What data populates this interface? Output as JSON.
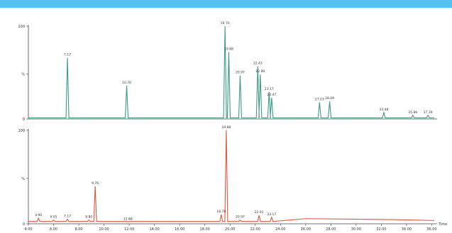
{
  "colors": {
    "banner": "#55c1ee",
    "trace_top": "#3f9a86",
    "trace_bottom": "#e0553d",
    "axis": "#444444"
  },
  "chart_data": [
    {
      "type": "line",
      "name": "",
      "color": "#3f9a86",
      "y_ticks": [
        "100",
        "%",
        "0"
      ],
      "ylim": [
        0,
        100
      ],
      "xlim": [
        4.0,
        36.2
      ],
      "baseline": 1.2,
      "peaks": [
        {
          "x": 7.1,
          "y": 66,
          "label": "7.17"
        },
        {
          "x": 11.8,
          "y": 36,
          "label": "10.76"
        },
        {
          "x": 19.6,
          "y": 100,
          "label": "19.70"
        },
        {
          "x": 19.9,
          "y": 72,
          "label": "19.88"
        },
        {
          "x": 20.8,
          "y": 47,
          "label": "20.97"
        },
        {
          "x": 22.2,
          "y": 57,
          "label": "22.43"
        },
        {
          "x": 22.4,
          "y": 48,
          "label": "22.89"
        },
        {
          "x": 23.1,
          "y": 29,
          "label": "23.17"
        },
        {
          "x": 23.3,
          "y": 23,
          "label": "23.47"
        },
        {
          "x": 27.1,
          "y": 18,
          "label": "27.03"
        },
        {
          "x": 27.9,
          "y": 19,
          "label": "28.09"
        },
        {
          "x": 32.2,
          "y": 7,
          "label": "33.48"
        },
        {
          "x": 34.5,
          "y": 4,
          "label": "35.86"
        },
        {
          "x": 35.7,
          "y": 4,
          "label": "37.39"
        }
      ]
    },
    {
      "type": "line",
      "name": "",
      "color": "#e0553d",
      "y_ticks": [
        "100",
        "%",
        "0"
      ],
      "ylim": [
        0,
        100
      ],
      "xlim": [
        4.0,
        36.2
      ],
      "x_ticks": [
        "4.00",
        "6.00",
        "8.00",
        "10.00",
        "12.00",
        "14.00",
        "16.00",
        "18.00",
        "20.00",
        "22.00",
        "24.00",
        "26.00",
        "28.00",
        "30.00",
        "32.00",
        "34.00",
        "36.00"
      ],
      "x_ticks_unit": "Time",
      "baseline": 2.5,
      "peaks": [
        {
          "x": 4.8,
          "y": 6,
          "label": "4.90"
        },
        {
          "x": 6.0,
          "y": 4,
          "label": "6.05"
        },
        {
          "x": 7.1,
          "y": 5,
          "label": "7.17"
        },
        {
          "x": 8.8,
          "y": 4,
          "label": "8.80"
        },
        {
          "x": 9.3,
          "y": 40,
          "label": "9.76"
        },
        {
          "x": 11.9,
          "y": 2,
          "label": "12.68"
        },
        {
          "x": 19.3,
          "y": 10,
          "label": "18.78"
        },
        {
          "x": 19.7,
          "y": 100,
          "label": "19.88"
        },
        {
          "x": 20.8,
          "y": 4,
          "label": "20.97"
        },
        {
          "x": 22.3,
          "y": 9,
          "label": "22.91"
        },
        {
          "x": 23.3,
          "y": 7,
          "label": "23.17"
        }
      ]
    }
  ]
}
